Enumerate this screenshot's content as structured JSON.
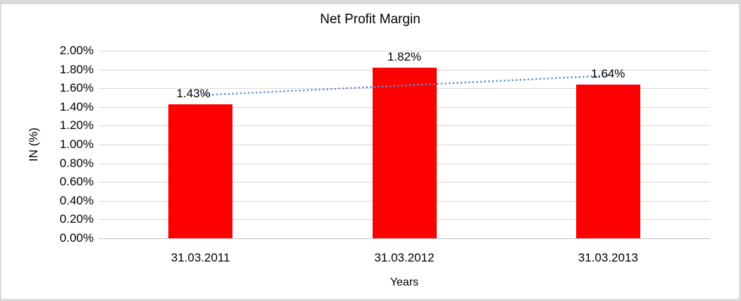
{
  "window": {
    "background": "#FFFFFF",
    "frame_border_color": "#DADADA"
  },
  "chart_data": {
    "type": "bar",
    "title": "Net Profit Margin",
    "xlabel": "Years",
    "ylabel": "IN (%)",
    "categories": [
      "31.03.2011",
      "31.03.2012",
      "31.03.2013"
    ],
    "series": [
      {
        "name": "Net Profit Margin",
        "color": "#FF0000",
        "values": [
          1.43,
          1.82,
          1.64
        ],
        "data_labels": [
          "1.43%",
          "1.82%",
          "1.64%"
        ]
      }
    ],
    "ylim": [
      0,
      2.0
    ],
    "ytick_step": 0.2,
    "ytick_labels": [
      "0.00%",
      "0.20%",
      "0.40%",
      "0.60%",
      "0.80%",
      "1.00%",
      "1.20%",
      "1.40%",
      "1.60%",
      "1.80%",
      "2.00%"
    ],
    "grid": true,
    "gridline_color": "#D9D9D9",
    "axis_line_color": "#BFBFBF",
    "legend": "none",
    "text_color": "#000000",
    "trendline": {
      "type": "linear",
      "dash": "dotted",
      "color": "#5B8FD4",
      "start_value": 1.525,
      "end_value": 1.735
    },
    "label_x_offsets": [
      -10,
      0,
      0
    ]
  }
}
